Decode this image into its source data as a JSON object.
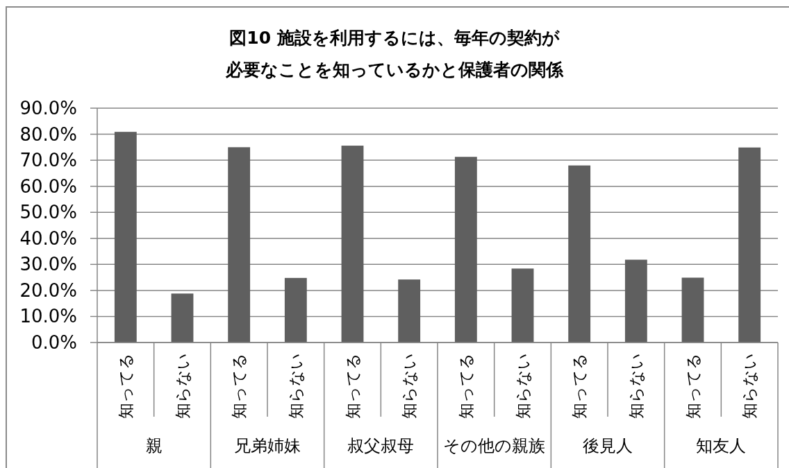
{
  "chart_data": {
    "type": "bar",
    "title": "図10 施設を利用するには、毎年の契約が必要なことを知っているかと保護者の関係",
    "categories": [
      "知ってる",
      "知らない",
      "知ってる",
      "知らない",
      "知ってる",
      "知らない",
      "知ってる",
      "知らない",
      "知ってる",
      "知らない",
      "知ってる",
      "知らない"
    ],
    "values": [
      80.9,
      18.8,
      75.0,
      24.8,
      75.6,
      24.2,
      71.3,
      28.4,
      68.0,
      31.8,
      24.9,
      74.9
    ],
    "color": "#5f5f5f",
    "ylim": [
      0,
      90
    ],
    "yticks": [
      {
        "value": 0,
        "label": "0.0%"
      },
      {
        "value": 10,
        "label": "10.0%"
      },
      {
        "value": 20,
        "label": "20.0%"
      },
      {
        "value": 30,
        "label": "30.0%"
      },
      {
        "value": 40,
        "label": "40.0%"
      },
      {
        "value": 50,
        "label": "50.0%"
      },
      {
        "value": 60,
        "label": "60.0%"
      },
      {
        "value": 70,
        "label": "70.0%"
      },
      {
        "value": 80,
        "label": "80.0%"
      },
      {
        "value": 90,
        "label": "90.0%"
      }
    ],
    "grid": "y",
    "annotations": [
      "親",
      "兄弟姉妹",
      "叔父叔母",
      "その他の親族",
      "後見人",
      "知友人"
    ]
  }
}
